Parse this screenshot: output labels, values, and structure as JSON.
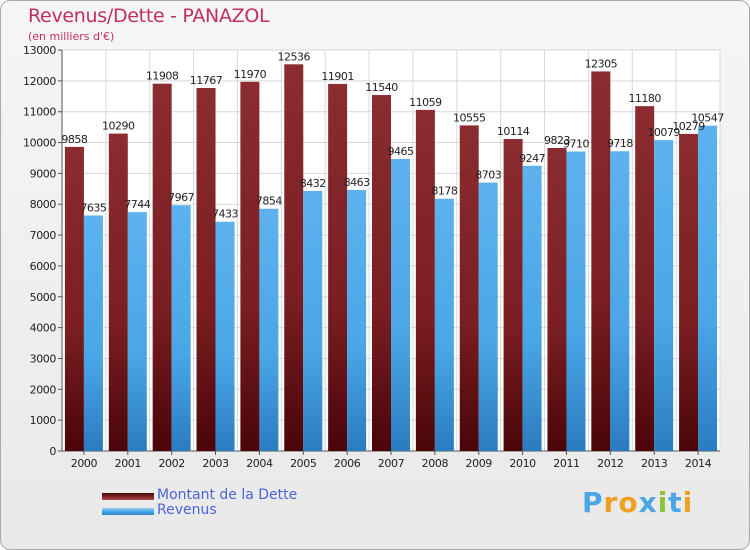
{
  "chart_data": {
    "type": "bar",
    "title": "Revenus/Dette - PANAZOL",
    "subtitle": "(en milliers d'€)",
    "categories": [
      "2000",
      "2001",
      "2002",
      "2003",
      "2004",
      "2005",
      "2006",
      "2007",
      "2008",
      "2009",
      "2010",
      "2011",
      "2012",
      "2013",
      "2014"
    ],
    "series": [
      {
        "name": "Montant de la Dette",
        "color": "#7f1f24",
        "values": [
          9858,
          10290,
          11908,
          11767,
          11970,
          12536,
          11901,
          11540,
          11059,
          10555,
          10114,
          9823,
          12305,
          11180,
          10279
        ]
      },
      {
        "name": "Revenus",
        "color": "#4aa6e6",
        "values": [
          7635,
          7744,
          7967,
          7433,
          7854,
          8432,
          8463,
          9465,
          8178,
          8703,
          9247,
          9710,
          9718,
          10079,
          10547
        ]
      }
    ],
    "ylim": [
      0,
      13000
    ],
    "yticks": [
      0,
      1000,
      2000,
      3000,
      4000,
      5000,
      6000,
      7000,
      8000,
      9000,
      10000,
      11000,
      12000,
      13000
    ],
    "grid": true,
    "legend_position": "bottom-left"
  },
  "logo": {
    "text": "Proxiti",
    "letters": [
      {
        "ch": "P",
        "color": "#4aa6e6"
      },
      {
        "ch": "r",
        "color": "#f0a020"
      },
      {
        "ch": "o",
        "color": "#f0a020"
      },
      {
        "ch": "x",
        "color": "#4aa6e6"
      },
      {
        "ch": "i",
        "color": "#8cc43c"
      },
      {
        "ch": "t",
        "color": "#4aa6e6"
      },
      {
        "ch": "i",
        "color": "#f0a020"
      }
    ]
  }
}
